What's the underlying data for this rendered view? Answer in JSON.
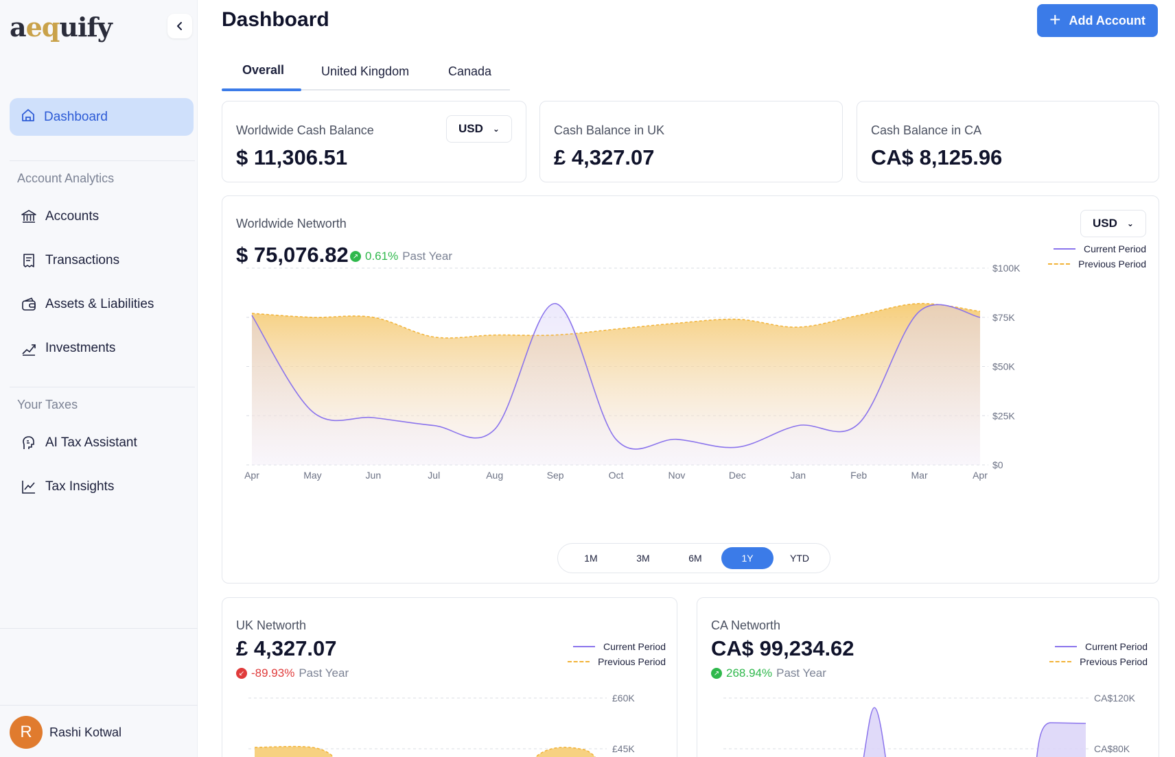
{
  "app": {
    "logo": {
      "pre": "a",
      "mark": "eq",
      "post": "uify"
    }
  },
  "sidebar": {
    "collapse_icon": "chevron-left-icon",
    "active": {
      "label": "Dashboard",
      "icon": "home-icon"
    },
    "sections": [
      {
        "label": "Account Analytics"
      },
      {
        "label": "Your Taxes"
      }
    ],
    "items": [
      {
        "label": "Accounts",
        "icon": "bank-icon"
      },
      {
        "label": "Transactions",
        "icon": "receipt-icon"
      },
      {
        "label": "Assets & Liabilities",
        "icon": "wallet-icon"
      },
      {
        "label": "Investments",
        "icon": "growth-icon"
      },
      {
        "label": "AI Tax Assistant",
        "icon": "ai-brain-icon"
      },
      {
        "label": "Tax Insights",
        "icon": "line-chart-icon"
      }
    ],
    "user": {
      "initial": "R",
      "name": "Rashi Kotwal"
    }
  },
  "header": {
    "title": "Dashboard",
    "add_button": "Add Account"
  },
  "tabs": [
    {
      "label": "Overall"
    },
    {
      "label": "United Kingdom"
    },
    {
      "label": "Canada"
    }
  ],
  "cards": {
    "worldwide_cash": {
      "label": "Worldwide Cash Balance",
      "value": "$ 11,306.51",
      "currency": "USD"
    },
    "uk_cash": {
      "label": "Cash Balance in UK",
      "value": "£ 4,327.07"
    },
    "ca_cash": {
      "label": "Cash Balance in CA",
      "value": "CA$ 8,125.96"
    }
  },
  "networth": {
    "label": "Worldwide Networth",
    "value": "$ 75,076.82",
    "change": "0.61%",
    "period": "Past Year",
    "currency": "USD",
    "legend": {
      "current": "Current Period",
      "previous": "Previous Period"
    },
    "ranges": [
      "1M",
      "3M",
      "6M",
      "1Y",
      "YTD"
    ],
    "active_range": "1Y"
  },
  "uk_networth": {
    "label": "UK Networth",
    "value": "£ 4,327.07",
    "change": "-89.93%",
    "period": "Past Year",
    "legend": {
      "current": "Current Period",
      "previous": "Previous Period"
    }
  },
  "ca_networth": {
    "label": "CA Networth",
    "value": "CA$ 99,234.62",
    "change": "268.94%",
    "period": "Past Year",
    "legend": {
      "current": "Current Period",
      "previous": "Previous Period"
    }
  },
  "colors": {
    "accent": "#3b7be8",
    "current": "#8a73ec",
    "previous": "#f1b235",
    "up": "#2fb84c",
    "down": "#e03b3b"
  },
  "chart_data": [
    {
      "type": "area",
      "x": [
        "Apr",
        "May",
        "Jun",
        "Jul",
        "Aug",
        "Sep",
        "Oct",
        "Nov",
        "Dec",
        "Jan",
        "Feb",
        "Mar",
        "Apr"
      ],
      "ytick_labels": [
        "$0",
        "$25K",
        "$50K",
        "$75K",
        "$100K"
      ],
      "ylim": [
        0,
        100000
      ],
      "series": [
        {
          "name": "Current Period",
          "values": [
            76000,
            27000,
            24000,
            20000,
            18000,
            82000,
            13000,
            13000,
            9000,
            20000,
            21000,
            78000,
            75000
          ]
        },
        {
          "name": "Previous Period",
          "values": [
            77000,
            75000,
            75000,
            65000,
            66000,
            66000,
            69000,
            72000,
            74000,
            70000,
            76000,
            82000,
            78000
          ]
        }
      ]
    },
    {
      "type": "area",
      "ytick_labels": [
        "£45K",
        "£60K"
      ],
      "series": [
        {
          "name": "Current Period",
          "values": []
        },
        {
          "name": "Previous Period",
          "values": []
        }
      ]
    },
    {
      "type": "area",
      "ytick_labels": [
        "CA$80K",
        "CA$120K"
      ],
      "series": [
        {
          "name": "Current Period",
          "values": []
        },
        {
          "name": "Previous Period",
          "values": []
        }
      ]
    }
  ]
}
